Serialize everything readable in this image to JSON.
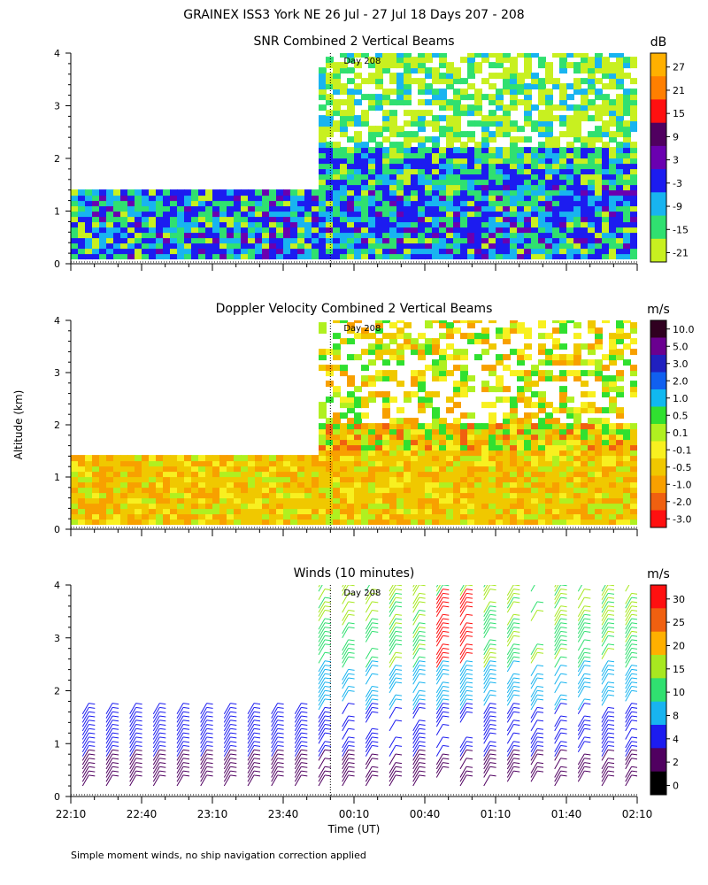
{
  "title": "GRAINEX ISS3 York NE  26 Jul - 27 Jul 18 Days 207 - 208",
  "ylabel": "Altitude (km)",
  "xlabel": "Time (UT)",
  "footnote": "Simple moment winds, no ship navigation correction applied",
  "day_marker": "Day 208",
  "x_ticks": [
    "22:10",
    "22:40",
    "23:10",
    "23:40",
    "00:10",
    "00:40",
    "01:10",
    "01:40",
    "02:10"
  ],
  "y_ticks": [
    "0",
    "1",
    "2",
    "3",
    "4"
  ],
  "chart_data": [
    {
      "type": "heatmap",
      "title": "SNR Combined 2 Vertical Beams",
      "units": "dB",
      "ylim": [
        0,
        4
      ],
      "xlim_minutes": [
        0,
        240
      ],
      "colorbar_ticks": [
        "27",
        "21",
        "15",
        "9",
        "3",
        "-3",
        "-9",
        "-15",
        "-21"
      ],
      "colors": [
        "#FFB000",
        "#FF7F00",
        "#FF1010",
        "#500060",
        "#6A00B0",
        "#1C1CF0",
        "#18B4F0",
        "#30E070",
        "#C8F020"
      ],
      "coverage": [
        {
          "t0": 0,
          "t1": 105,
          "top_km": 1.4
        },
        {
          "t0": 105,
          "t1": 240,
          "top_km": 4.0
        }
      ]
    },
    {
      "type": "heatmap",
      "title": "Doppler Velocity Combined 2 Vertical Beams",
      "units": "m/s",
      "ylim": [
        0,
        4
      ],
      "xlim_minutes": [
        0,
        240
      ],
      "colorbar_ticks": [
        "10.0",
        "5.0",
        "3.0",
        "2.0",
        "1.0",
        "0.5",
        "0.1",
        "-0.1",
        "-0.5",
        "-1.0",
        "-2.0",
        "-3.0"
      ],
      "colors": [
        "#300020",
        "#6A0090",
        "#2020C0",
        "#1060F0",
        "#10B8F0",
        "#30E030",
        "#B0F020",
        "#F8F020",
        "#F0C800",
        "#F8A000",
        "#F06010",
        "#FF1010"
      ],
      "coverage": [
        {
          "t0": 0,
          "t1": 105,
          "top_km": 1.4
        },
        {
          "t0": 105,
          "t1": 240,
          "top_km": 4.0
        }
      ]
    },
    {
      "type": "wind_barbs",
      "title": "Winds (10 minutes)",
      "units": "m/s",
      "ylim": [
        0,
        4
      ],
      "xlim_minutes": [
        0,
        240
      ],
      "interval_minutes": 10,
      "colorbar_ticks": [
        "30",
        "25",
        "20",
        "15",
        "10",
        "8",
        "4",
        "2",
        "0"
      ],
      "colors": [
        "#FF1010",
        "#F06010",
        "#FFB000",
        "#A8E820",
        "#30E070",
        "#18B4F0",
        "#1C1CF0",
        "#500060",
        "#000000"
      ],
      "top_km_before": 1.6,
      "top_km_after": 4.0
    }
  ]
}
